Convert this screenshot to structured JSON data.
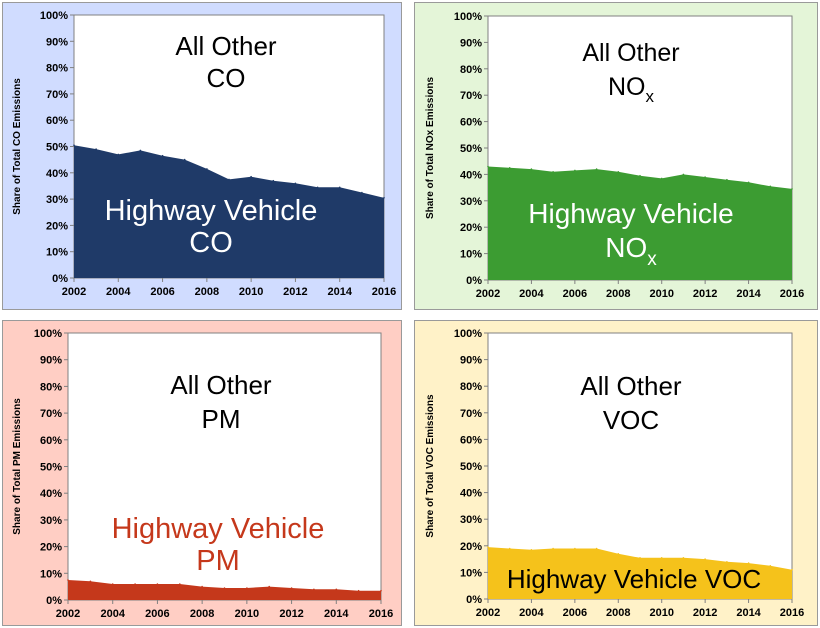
{
  "chart_data": [
    {
      "type": "area",
      "panel": "co",
      "ylabel": "Share of Total CO Emissions",
      "x": [
        2002,
        2003,
        2004,
        2005,
        2006,
        2007,
        2008,
        2009,
        2010,
        2011,
        2012,
        2013,
        2014,
        2015,
        2016
      ],
      "values": [
        50.5,
        49,
        47,
        48.5,
        46.5,
        45,
        41.5,
        37.5,
        38.5,
        37,
        36,
        34.5,
        34.5,
        32.5,
        30.5
      ],
      "xlim": [
        2002,
        2016
      ],
      "ylim": [
        0,
        100
      ],
      "xticks": [
        "2002",
        "2004",
        "2006",
        "2008",
        "2010",
        "2012",
        "2014",
        "2016"
      ],
      "yticks": [
        "0%",
        "10%",
        "20%",
        "30%",
        "40%",
        "50%",
        "60%",
        "70%",
        "80%",
        "90%",
        "100%"
      ],
      "other_label": [
        "All Other",
        "CO"
      ],
      "highway_label": [
        "Highway Vehicle",
        "CO"
      ],
      "colors": {
        "panel_bg": "#d0dcff",
        "fill": "#1f3a68",
        "highway_text": "#ffffff"
      }
    },
    {
      "type": "area",
      "panel": "nox",
      "ylabel": "Share of Total NOx Emissions",
      "x": [
        2002,
        2003,
        2004,
        2005,
        2006,
        2007,
        2008,
        2009,
        2010,
        2011,
        2012,
        2013,
        2014,
        2015,
        2016
      ],
      "values": [
        43,
        42.5,
        42,
        41,
        41.5,
        42,
        41,
        39.5,
        38.5,
        40,
        39,
        38,
        37,
        35.5,
        34.5
      ],
      "xlim": [
        2002,
        2016
      ],
      "ylim": [
        0,
        100
      ],
      "xticks": [
        "2002",
        "2004",
        "2006",
        "2008",
        "2010",
        "2012",
        "2014",
        "2016"
      ],
      "yticks": [
        "0%",
        "10%",
        "20%",
        "30%",
        "40%",
        "50%",
        "60%",
        "70%",
        "80%",
        "90%",
        "100%"
      ],
      "other_label": [
        "All Other",
        "NO",
        "x"
      ],
      "highway_label": [
        "Highway Vehicle",
        "NO",
        "x"
      ],
      "colors": {
        "panel_bg": "#e4f5d8",
        "fill": "#3c9c32",
        "highway_text": "#ffffff"
      }
    },
    {
      "type": "area",
      "panel": "pm",
      "ylabel": "Share of Total PM Emissions",
      "x": [
        2002,
        2003,
        2004,
        2005,
        2006,
        2007,
        2008,
        2009,
        2010,
        2011,
        2012,
        2013,
        2014,
        2015,
        2016
      ],
      "values": [
        7.5,
        7,
        6,
        6,
        6,
        6,
        5,
        4.5,
        4.5,
        5,
        4.5,
        4,
        4,
        3.5,
        3.5
      ],
      "xlim": [
        2002,
        2016
      ],
      "ylim": [
        0,
        100
      ],
      "xticks": [
        "2002",
        "2004",
        "2006",
        "2008",
        "2010",
        "2012",
        "2014",
        "2016"
      ],
      "yticks": [
        "0%",
        "10%",
        "20%",
        "30%",
        "40%",
        "50%",
        "60%",
        "70%",
        "80%",
        "90%",
        "100%"
      ],
      "other_label": [
        "All Other",
        "PM"
      ],
      "highway_label": [
        "Highway Vehicle",
        "PM"
      ],
      "colors": {
        "panel_bg": "#ffcec4",
        "fill": "#c5381b",
        "highway_text": "#c5381b"
      }
    },
    {
      "type": "area",
      "panel": "voc",
      "ylabel": "Share of Total VOC Emissions",
      "x": [
        2002,
        2003,
        2004,
        2005,
        2006,
        2007,
        2008,
        2009,
        2010,
        2011,
        2012,
        2013,
        2014,
        2015,
        2016
      ],
      "values": [
        19.5,
        19,
        18.5,
        19,
        19,
        19,
        17,
        15.5,
        15.5,
        15.5,
        15,
        14,
        13.5,
        12.5,
        11
      ],
      "xlim": [
        2002,
        2016
      ],
      "ylim": [
        0,
        100
      ],
      "xticks": [
        "2002",
        "2004",
        "2006",
        "2008",
        "2010",
        "2012",
        "2014",
        "2016"
      ],
      "yticks": [
        "0%",
        "10%",
        "20%",
        "30%",
        "40%",
        "50%",
        "60%",
        "70%",
        "80%",
        "90%",
        "100%"
      ],
      "other_label": [
        "All Other",
        "VOC"
      ],
      "highway_label": [
        "Highway Vehicle VOC"
      ],
      "colors": {
        "panel_bg": "#fff2c8",
        "fill": "#f5c21b",
        "highway_text": "#000000"
      }
    }
  ]
}
